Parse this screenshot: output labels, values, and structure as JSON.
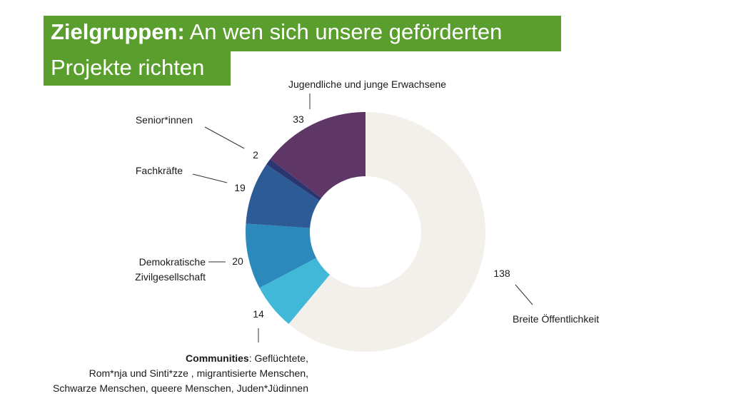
{
  "title": {
    "bold": "Zielgruppen:",
    "line1_rest": " An wen sich unsere geförderten",
    "line2": "Projekte richten"
  },
  "colors": {
    "title_bg": "#5a9e2e",
    "title_text": "#ffffff"
  },
  "chart_data": {
    "type": "pie",
    "donut": true,
    "categories": [
      "Breite Öffentlichkeit",
      "Communities",
      "Demokratische Zivilgesellschaft",
      "Fachkräfte",
      "Senior*innen",
      "Jugendliche und junge Erwachsene"
    ],
    "values": [
      138,
      14,
      20,
      19,
      2,
      33
    ],
    "colors": [
      "#f3efea",
      "#41b8d8",
      "#2c89bc",
      "#2c5b96",
      "#2b3670",
      "#5e3766"
    ],
    "labels": {
      "breite": "Breite Öffentlichkeit",
      "communities_bold": "Communities",
      "communities_line1_rest": ": Geflüchtete,",
      "communities_line2": "Rom*nja und Sinti*zze ,  migrantisierte Menschen,",
      "communities_line3": "Schwarze Menschen, queere Menschen, Juden*Jüdinnen",
      "demo_line1": "Demokratische",
      "demo_line2": "Zivilgesellschaft",
      "fach": "Fachkräfte",
      "senior": "Senior*innen",
      "jugend": "Jugendliche und  junge Erwachsene"
    },
    "value_labels": {
      "breite": "138",
      "communities": "14",
      "demo": "20",
      "fach": "19",
      "senior": "2",
      "jugend": "33"
    }
  }
}
